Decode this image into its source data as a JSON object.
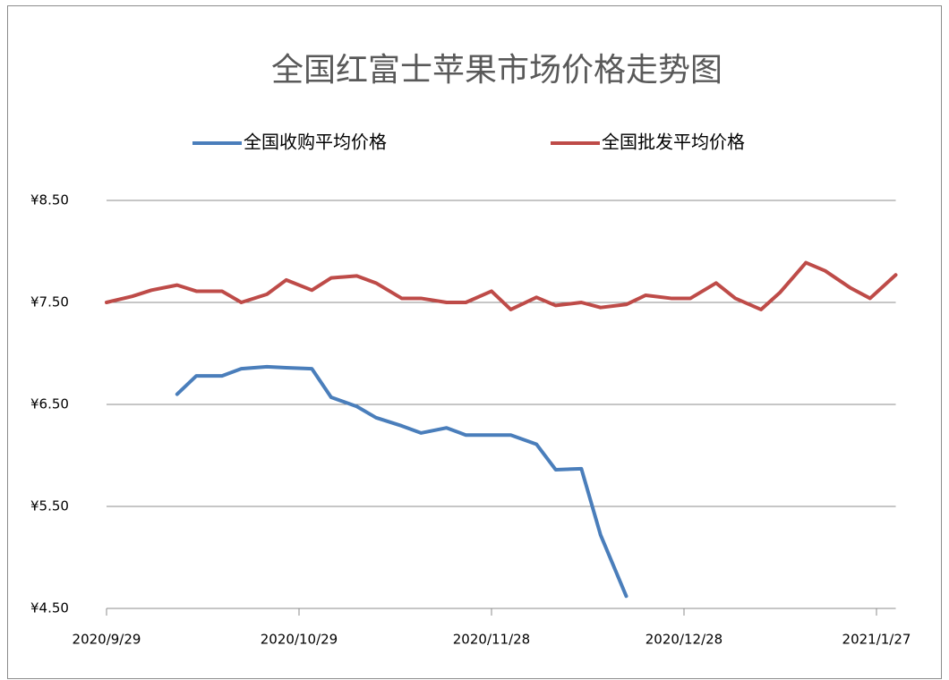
{
  "chart_data": {
    "type": "line",
    "title": "全国红富士苹果市场价格走势图",
    "x": [
      "2020/9/29",
      "2020/10/3",
      "2020/10/6",
      "2020/10/10",
      "2020/10/13",
      "2020/10/17",
      "2020/10/20",
      "2020/10/24",
      "2020/10/27",
      "2020/10/31",
      "2020/11/3",
      "2020/11/7",
      "2020/11/10",
      "2020/11/14",
      "2020/11/17",
      "2020/11/21",
      "2020/11/24",
      "2020/11/28",
      "2020/12/1",
      "2020/12/5",
      "2020/12/8",
      "2020/12/12",
      "2020/12/15",
      "2020/12/19",
      "2020/12/22",
      "2020/12/26",
      "2020/12/29",
      "2021/1/2",
      "2021/1/5",
      "2021/1/9",
      "2021/1/12",
      "2021/1/16",
      "2021/1/19",
      "2021/1/23",
      "2021/1/26",
      "2021/1/30"
    ],
    "series": [
      {
        "name": "全国收购平均价格",
        "color": "#4a7ebb",
        "values": [
          null,
          null,
          null,
          6.6,
          6.78,
          6.78,
          6.85,
          6.87,
          6.86,
          6.85,
          6.57,
          6.48,
          6.37,
          6.29,
          6.22,
          6.27,
          6.2,
          6.2,
          6.2,
          6.11,
          5.86,
          5.87,
          5.22,
          4.62,
          null,
          null,
          null,
          null,
          null,
          null,
          null,
          null,
          null,
          null,
          null,
          null
        ]
      },
      {
        "name": "全国批发平均价格",
        "color": "#be4b48",
        "values": [
          7.5,
          7.56,
          7.62,
          7.67,
          7.61,
          7.61,
          7.5,
          7.58,
          7.72,
          7.62,
          7.74,
          7.76,
          7.69,
          7.54,
          7.54,
          7.5,
          7.5,
          7.61,
          7.43,
          7.55,
          7.47,
          7.5,
          7.45,
          7.48,
          7.57,
          7.54,
          7.54,
          7.69,
          7.54,
          7.43,
          7.6,
          7.89,
          7.81,
          7.64,
          7.54,
          7.77
        ]
      }
    ],
    "xlim": [
      "2020/9/29",
      "2021/1/30"
    ],
    "xticks": [
      "2020/9/29",
      "2020/10/29",
      "2020/11/28",
      "2020/12/28",
      "2021/1/27"
    ],
    "ylim": [
      4.5,
      8.5
    ],
    "yticks": [
      {
        "value": 4.5,
        "label": "¥4.50"
      },
      {
        "value": 5.5,
        "label": "¥5.50"
      },
      {
        "value": 6.5,
        "label": "¥6.50"
      },
      {
        "value": 7.5,
        "label": "¥7.50"
      },
      {
        "value": 8.5,
        "label": "¥8.50"
      }
    ],
    "grid": true
  }
}
